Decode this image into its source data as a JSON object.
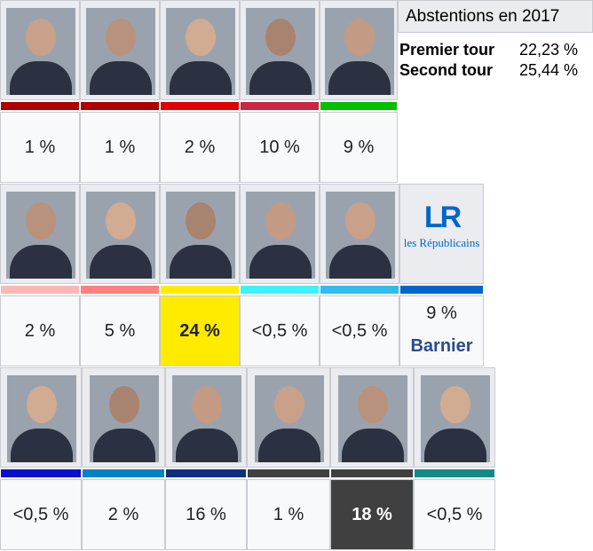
{
  "abstentions": {
    "title": "Abstentions en 2017",
    "rows": [
      {
        "label": "Premier tour",
        "value": "22,23 %"
      },
      {
        "label": "Second tour",
        "value": "25,44 %"
      }
    ]
  },
  "rows": [
    {
      "candidates": [
        {
          "percent": "1 %",
          "color": "#b00000"
        },
        {
          "percent": "1 %",
          "color": "#b00000"
        },
        {
          "percent": "2 %",
          "color": "#e00000"
        },
        {
          "percent": "10 %",
          "color": "#cc2443"
        },
        {
          "percent": "9 %",
          "color": "#00c000"
        }
      ]
    },
    {
      "candidates": [
        {
          "percent": "2 %",
          "color": "#ffb6b6"
        },
        {
          "percent": "5 %",
          "color": "#ff8080"
        },
        {
          "percent": "24 %",
          "color": "#ffeb00",
          "cell_color": "#ffeb00",
          "bold": true
        },
        {
          "percent": "<0,5 %",
          "color": "#3ff0ff"
        },
        {
          "percent": "<0,5 %",
          "color": "#33bbee"
        },
        {
          "percent": "9 %",
          "color": "#0066cc",
          "logo": "les Républicains",
          "logo_mark": "LR",
          "name": "Barnier"
        }
      ]
    },
    {
      "candidates": [
        {
          "percent": "<0,5 %",
          "color": "#0a10d0"
        },
        {
          "percent": "2 %",
          "color": "#0082c4"
        },
        {
          "percent": "16 %",
          "color": "#0d2d80"
        },
        {
          "percent": "1 %",
          "color": "#404040"
        },
        {
          "percent": "18 %",
          "color": "#404040",
          "cell_color": "#404040",
          "text_color": "#ffffff",
          "bold": true
        },
        {
          "percent": "<0,5 %",
          "color": "#138a8a"
        }
      ]
    }
  ]
}
